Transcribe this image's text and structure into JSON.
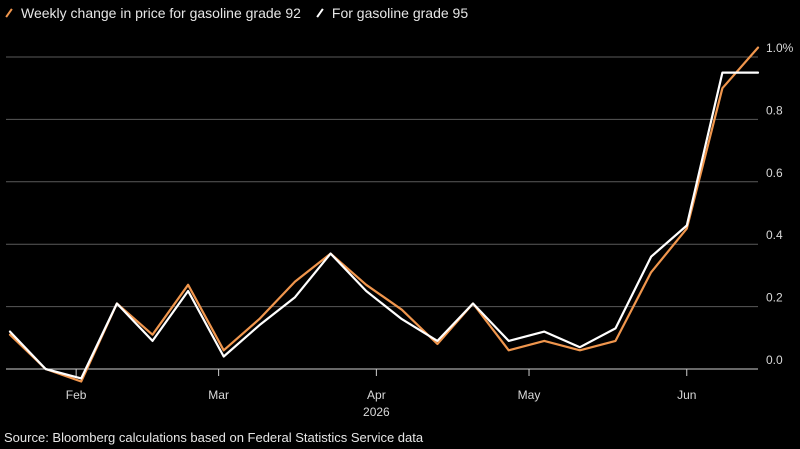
{
  "legend": [
    {
      "label": "Weekly change in price for gasoline grade 92",
      "color": "#f0964d"
    },
    {
      "label": "For gasoline grade 95",
      "color": "#ffffff"
    }
  ],
  "source": "Source: Bloomberg calculations based on Federal Statistics Service data",
  "chart_data": {
    "type": "line",
    "title": "",
    "xlabel": "",
    "ylabel": "",
    "y_unit": "%",
    "ylim": [
      0,
      1.0
    ],
    "y_ticks": [
      {
        "value": 0.0,
        "label": "0.0"
      },
      {
        "value": 0.2,
        "label": "0.2"
      },
      {
        "value": 0.4,
        "label": "0.4"
      },
      {
        "value": 0.6,
        "label": "0.6"
      },
      {
        "value": 0.8,
        "label": "0.8"
      },
      {
        "value": 1.0,
        "label": "1.0%"
      }
    ],
    "x_ticks": [
      {
        "date": "2026-02-01",
        "label": "Feb"
      },
      {
        "date": "2026-03-01",
        "label": "Mar"
      },
      {
        "date": "2026-04-01",
        "label": "Apr"
      },
      {
        "date": "2026-05-01",
        "label": "May"
      },
      {
        "date": "2026-06-01",
        "label": "Jun"
      }
    ],
    "x_year_label": "2026",
    "grid": "horizontal",
    "legend_position": "top-left",
    "x": [
      "2026-01-19",
      "2026-01-26",
      "2026-02-02",
      "2026-02-09",
      "2026-02-16",
      "2026-02-23",
      "2026-03-02",
      "2026-03-09",
      "2026-03-16",
      "2026-03-23",
      "2026-03-30",
      "2026-04-06",
      "2026-04-13",
      "2026-04-20",
      "2026-04-27",
      "2026-05-04",
      "2026-05-11",
      "2026-05-18",
      "2026-05-25",
      "2026-06-01",
      "2026-06-08",
      "2026-06-15"
    ],
    "series": [
      {
        "name": "Weekly change in price for gasoline grade 92",
        "color": "#f0964d",
        "values": [
          0.11,
          0.0,
          -0.04,
          0.21,
          0.11,
          0.27,
          0.06,
          0.16,
          0.28,
          0.37,
          0.27,
          0.19,
          0.08,
          0.21,
          0.06,
          0.09,
          0.06,
          0.09,
          0.31,
          0.45,
          0.9,
          1.03
        ]
      },
      {
        "name": "For gasoline grade 95",
        "color": "#ffffff",
        "values": [
          0.12,
          0.0,
          -0.03,
          0.21,
          0.09,
          0.25,
          0.04,
          0.14,
          0.23,
          0.37,
          0.25,
          0.16,
          0.09,
          0.21,
          0.09,
          0.12,
          0.07,
          0.13,
          0.36,
          0.46,
          0.95,
          0.95
        ]
      }
    ]
  }
}
